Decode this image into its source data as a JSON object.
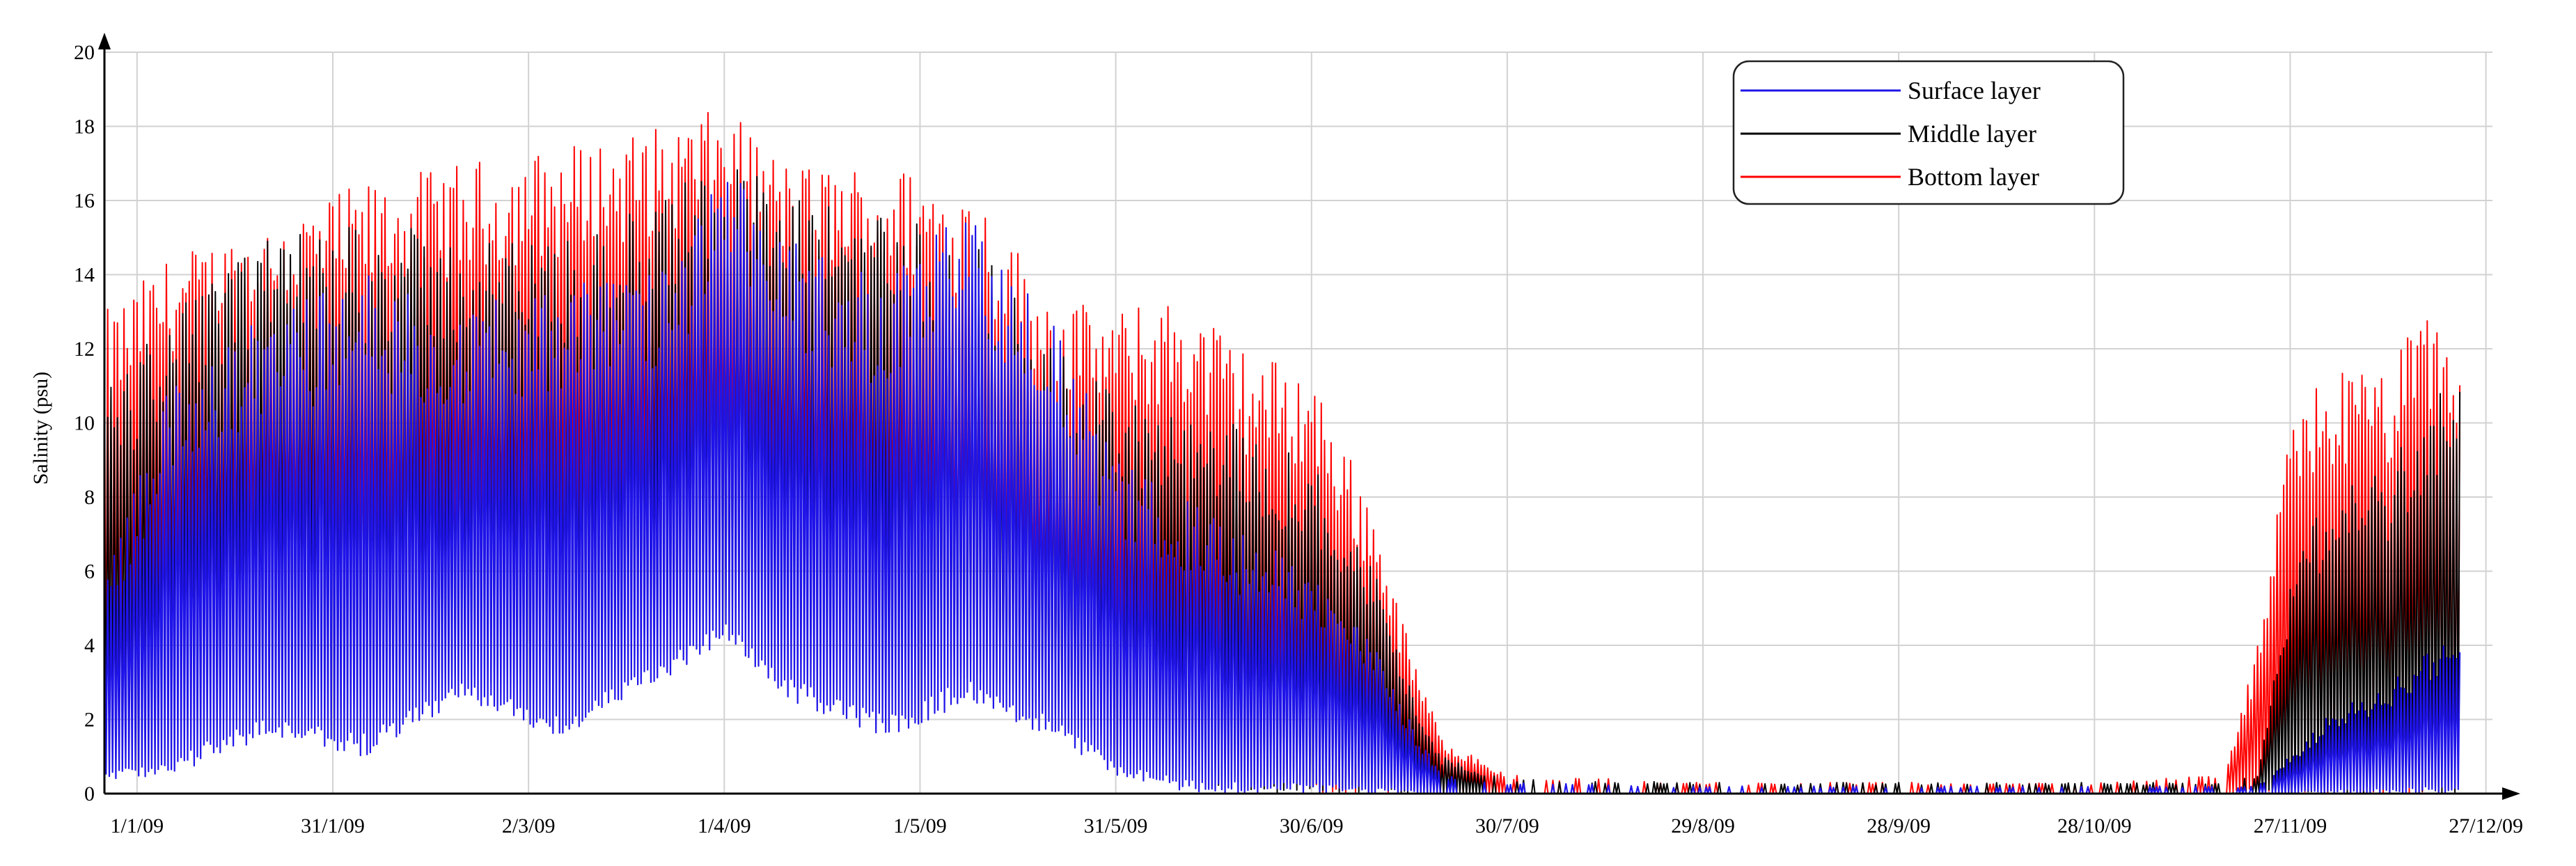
{
  "chart_data": {
    "type": "line",
    "title": "",
    "xlabel": "",
    "ylabel": "Salinity (psu)",
    "ylim": [
      0,
      20
    ],
    "y_ticks": [
      "0",
      "2",
      "4",
      "6",
      "8",
      "10",
      "12",
      "14",
      "16",
      "18",
      "20"
    ],
    "x_ticks": [
      "1/1/09",
      "31/1/09",
      "2/3/09",
      "1/4/09",
      "1/5/09",
      "31/5/09",
      "30/6/09",
      "30/7/09",
      "29/8/09",
      "28/9/09",
      "28/10/09",
      "27/11/09",
      "27/12/09"
    ],
    "grid": true,
    "legend_position": "top-right",
    "x_range_days": [
      -5,
      361
    ],
    "series": [
      {
        "name": "Surface layer",
        "color": "#1f14e8",
        "envelope": {
          "day": [
            -5,
            5,
            20,
            35,
            50,
            65,
            80,
            90,
            100,
            115,
            128,
            140,
            150,
            160,
            170,
            180,
            190,
            195,
            200,
            210,
            240,
            300,
            320,
            325,
            330,
            335,
            345,
            352,
            356
          ],
          "max": [
            6,
            11,
            13,
            14,
            13,
            14,
            14,
            17,
            15,
            14,
            16,
            13,
            9,
            8,
            7,
            6,
            4,
            2,
            0.5,
            0.3,
            0.2,
            0.2,
            0.2,
            0.2,
            1,
            2,
            3,
            4,
            4
          ],
          "min": [
            0.3,
            0.5,
            1.5,
            1,
            2.5,
            1.5,
            3,
            4,
            2.5,
            1.5,
            2.5,
            1.5,
            0.5,
            0,
            0,
            0,
            0,
            0,
            0,
            0,
            0,
            0,
            0,
            0,
            0,
            0,
            0,
            0,
            0
          ]
        }
      },
      {
        "name": "Middle layer",
        "color": "#000000",
        "envelope": {
          "day": [
            -5,
            5,
            20,
            35,
            50,
            65,
            80,
            90,
            100,
            115,
            128,
            140,
            150,
            160,
            170,
            180,
            190,
            195,
            200,
            210,
            240,
            300,
            320,
            325,
            330,
            335,
            345,
            352,
            356
          ],
          "max": [
            11,
            13,
            15,
            15.5,
            15,
            15,
            16,
            17.5,
            16,
            16,
            15,
            12,
            11,
            10,
            10,
            9,
            6,
            3,
            1,
            0.4,
            0.3,
            0.3,
            0.3,
            0.5,
            6,
            8,
            9,
            11,
            11
          ],
          "min": [
            0.5,
            2,
            3,
            2,
            3,
            3,
            4,
            5,
            4,
            3,
            3,
            2,
            1,
            0.5,
            0,
            0,
            0,
            0,
            0,
            0,
            0,
            0,
            0,
            0,
            0,
            0,
            0,
            0,
            0
          ]
        }
      },
      {
        "name": "Bottom layer",
        "color": "#ff0000",
        "envelope": {
          "day": [
            -5,
            5,
            20,
            35,
            50,
            65,
            80,
            90,
            100,
            115,
            128,
            140,
            150,
            160,
            170,
            180,
            190,
            195,
            200,
            210,
            240,
            300,
            320,
            325,
            330,
            335,
            345,
            352,
            356
          ],
          "max": [
            13,
            14.5,
            15.5,
            16.5,
            17,
            17.5,
            18,
            18.5,
            17,
            17,
            16.5,
            13.5,
            13,
            13.5,
            12,
            11.5,
            7.5,
            4,
            1.5,
            0.5,
            0.3,
            0.3,
            0.5,
            4,
            10,
            11.5,
            11.5,
            13.5,
            12
          ],
          "min": [
            1,
            4,
            5,
            4,
            5,
            5,
            6,
            7,
            6,
            5,
            4,
            3,
            2,
            1,
            0.5,
            0,
            0,
            0,
            0,
            0,
            0,
            0,
            0,
            0,
            0,
            0,
            0,
            0,
            0
          ]
        }
      }
    ]
  }
}
